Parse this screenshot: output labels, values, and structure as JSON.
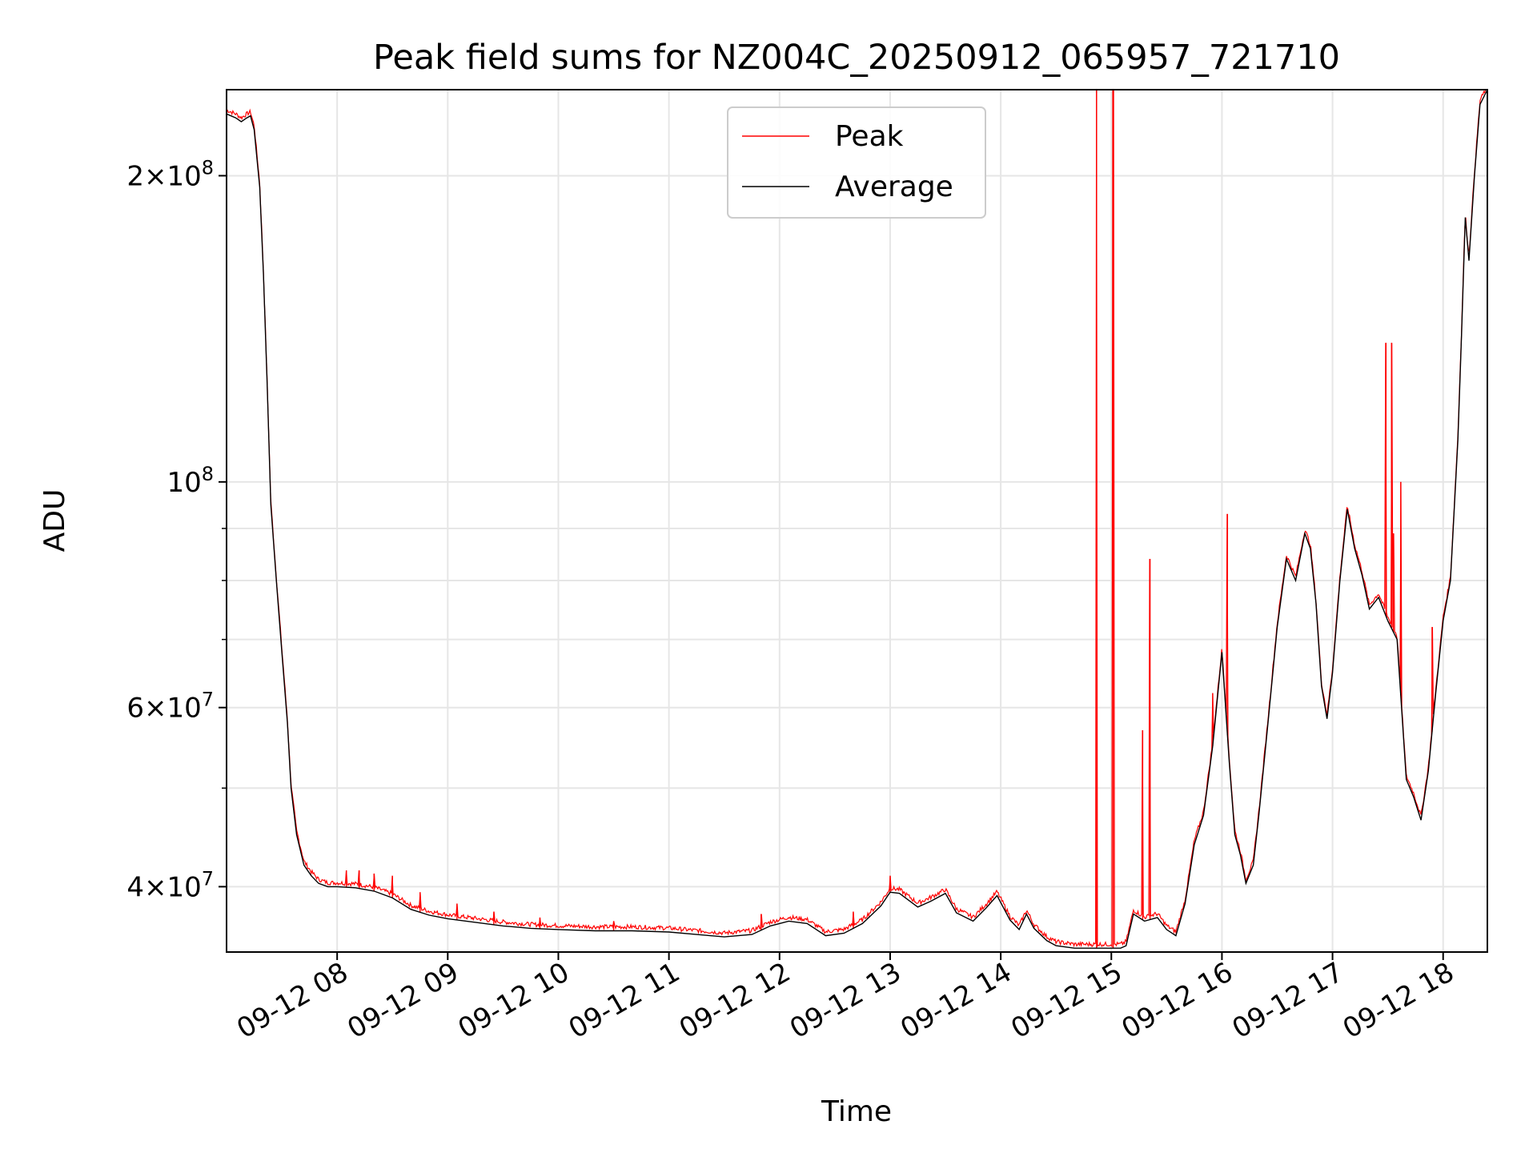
{
  "chart_data": {
    "type": "line",
    "title": "Peak field sums for NZ004C_20250912_065957_721710",
    "xlabel": "Time",
    "ylabel": "ADU",
    "yscale": "log",
    "grid": true,
    "legend_position": "top-center",
    "xlim": [
      "2025-09-12 07:00",
      "2025-09-12 18:24"
    ],
    "ylim": [
      34500000,
      243000000
    ],
    "x_ticks": [
      "09-12 08",
      "09-12 09",
      "09-12 10",
      "09-12 11",
      "09-12 12",
      "09-12 13",
      "09-12 14",
      "09-12 15",
      "09-12 16",
      "09-12 17",
      "09-12 18"
    ],
    "y_ticks": [
      {
        "value": 40000000,
        "label": "4 × 10^7",
        "mantissa": "4",
        "exp": "7"
      },
      {
        "value": 60000000,
        "label": "6 × 10^7",
        "mantissa": "6",
        "exp": "7"
      },
      {
        "value": 100000000,
        "label": "10^8",
        "mantissa": "",
        "exp": "8"
      },
      {
        "value": 200000000,
        "label": "2 × 10^8",
        "mantissa": "2",
        "exp": "8"
      }
    ],
    "series": [
      {
        "name": "Average",
        "color": "#000000",
        "x": [
          "2025-09-12 07:00",
          "2025-09-12 07:05",
          "2025-09-12 07:08",
          "2025-09-12 07:11",
          "2025-09-12 07:13",
          "2025-09-12 07:15",
          "2025-09-12 07:18",
          "2025-09-12 07:20",
          "2025-09-12 07:22",
          "2025-09-12 07:24",
          "2025-09-12 07:27",
          "2025-09-12 07:30",
          "2025-09-12 07:33",
          "2025-09-12 07:35",
          "2025-09-12 07:38",
          "2025-09-12 07:42",
          "2025-09-12 07:46",
          "2025-09-12 07:50",
          "2025-09-12 07:55",
          "2025-09-12 08:00",
          "2025-09-12 08:10",
          "2025-09-12 08:20",
          "2025-09-12 08:30",
          "2025-09-12 08:40",
          "2025-09-12 08:50",
          "2025-09-12 09:00",
          "2025-09-12 09:15",
          "2025-09-12 09:30",
          "2025-09-12 09:45",
          "2025-09-12 10:00",
          "2025-09-12 10:20",
          "2025-09-12 10:40",
          "2025-09-12 11:00",
          "2025-09-12 11:15",
          "2025-09-12 11:30",
          "2025-09-12 11:45",
          "2025-09-12 11:55",
          "2025-09-12 12:05",
          "2025-09-12 12:15",
          "2025-09-12 12:25",
          "2025-09-12 12:35",
          "2025-09-12 12:45",
          "2025-09-12 12:55",
          "2025-09-12 13:00",
          "2025-09-12 13:05",
          "2025-09-12 13:15",
          "2025-09-12 13:22",
          "2025-09-12 13:30",
          "2025-09-12 13:36",
          "2025-09-12 13:45",
          "2025-09-12 13:52",
          "2025-09-12 13:58",
          "2025-09-12 14:05",
          "2025-09-12 14:10",
          "2025-09-12 14:14",
          "2025-09-12 14:18",
          "2025-09-12 14:25",
          "2025-09-12 14:30",
          "2025-09-12 14:40",
          "2025-09-12 14:50",
          "2025-09-12 15:00",
          "2025-09-12 15:05",
          "2025-09-12 15:08",
          "2025-09-12 15:12",
          "2025-09-12 15:18",
          "2025-09-12 15:25",
          "2025-09-12 15:30",
          "2025-09-12 15:35",
          "2025-09-12 15:40",
          "2025-09-12 15:45",
          "2025-09-12 15:50",
          "2025-09-12 15:55",
          "2025-09-12 16:00",
          "2025-09-12 16:04",
          "2025-09-12 16:07",
          "2025-09-12 16:10",
          "2025-09-12 16:13",
          "2025-09-12 16:17",
          "2025-09-12 16:20",
          "2025-09-12 16:25",
          "2025-09-12 16:30",
          "2025-09-12 16:35",
          "2025-09-12 16:40",
          "2025-09-12 16:45",
          "2025-09-12 16:48",
          "2025-09-12 16:51",
          "2025-09-12 16:54",
          "2025-09-12 16:57",
          "2025-09-12 17:00",
          "2025-09-12 17:04",
          "2025-09-12 17:08",
          "2025-09-12 17:12",
          "2025-09-12 17:16",
          "2025-09-12 17:20",
          "2025-09-12 17:25",
          "2025-09-12 17:30",
          "2025-09-12 17:35",
          "2025-09-12 17:40",
          "2025-09-12 17:44",
          "2025-09-12 17:48",
          "2025-09-12 17:52",
          "2025-09-12 17:56",
          "2025-09-12 18:00",
          "2025-09-12 18:04",
          "2025-09-12 18:08",
          "2025-09-12 18:10",
          "2025-09-12 18:12",
          "2025-09-12 18:14",
          "2025-09-12 18:17",
          "2025-09-12 18:20",
          "2025-09-12 18:24"
        ],
        "values": [
          230000000,
          228000000,
          226000000,
          228000000,
          229000000,
          222000000,
          195000000,
          160000000,
          125000000,
          95000000,
          80000000,
          68000000,
          58000000,
          50000000,
          45000000,
          42000000,
          41000000,
          40300000,
          40000000,
          40000000,
          39900000,
          39600000,
          39000000,
          38000000,
          37500000,
          37200000,
          36900000,
          36600000,
          36400000,
          36300000,
          36200000,
          36200000,
          36100000,
          35900000,
          35700000,
          35900000,
          36600000,
          37000000,
          36800000,
          35800000,
          36000000,
          36800000,
          38300000,
          39500000,
          39400000,
          38200000,
          38700000,
          39400000,
          37700000,
          37000000,
          38100000,
          39200000,
          37100000,
          36300000,
          37600000,
          36400000,
          35400000,
          35000000,
          34800000,
          34800000,
          34800000,
          34800000,
          35000000,
          37600000,
          37000000,
          37300000,
          36300000,
          35800000,
          38500000,
          44000000,
          47000000,
          55000000,
          68000000,
          53000000,
          45000000,
          43000000,
          40300000,
          42000000,
          47000000,
          58000000,
          72000000,
          84000000,
          80000000,
          89000000,
          86000000,
          76000000,
          63000000,
          58500000,
          65000000,
          80000000,
          94000000,
          86000000,
          81000000,
          75000000,
          77000000,
          73000000,
          70000000,
          51000000,
          49000000,
          46500000,
          52000000,
          62000000,
          73000000,
          80000000,
          110000000,
          140000000,
          182000000,
          165000000,
          200000000,
          235000000,
          243000000
        ]
      },
      {
        "name": "Peak",
        "color": "#ff0000",
        "x": [
          "2025-09-12 08:05",
          "2025-09-12 08:12",
          "2025-09-12 08:20",
          "2025-09-12 08:30",
          "2025-09-12 08:45",
          "2025-09-12 09:05",
          "2025-09-12 09:25",
          "2025-09-12 09:50",
          "2025-09-12 10:30",
          "2025-09-12 11:50",
          "2025-09-12 12:40",
          "2025-09-12 13:00",
          "2025-09-12 14:52",
          "2025-09-12 15:01",
          "2025-09-12 15:17",
          "2025-09-12 15:21",
          "2025-09-12 15:55",
          "2025-09-12 16:03",
          "2025-09-12 17:29",
          "2025-09-12 17:32",
          "2025-09-12 17:33",
          "2025-09-12 17:37",
          "2025-09-12 17:54"
        ],
        "values": [
          41500000,
          41500000,
          41200000,
          41000000,
          39500000,
          38500000,
          37800000,
          37300000,
          37000000,
          37600000,
          37800000,
          41000000,
          243000000,
          243000000,
          57000000,
          84000000,
          62000000,
          93000000,
          137000000,
          137000000,
          89000000,
          100000000,
          72000000
        ]
      }
    ]
  }
}
